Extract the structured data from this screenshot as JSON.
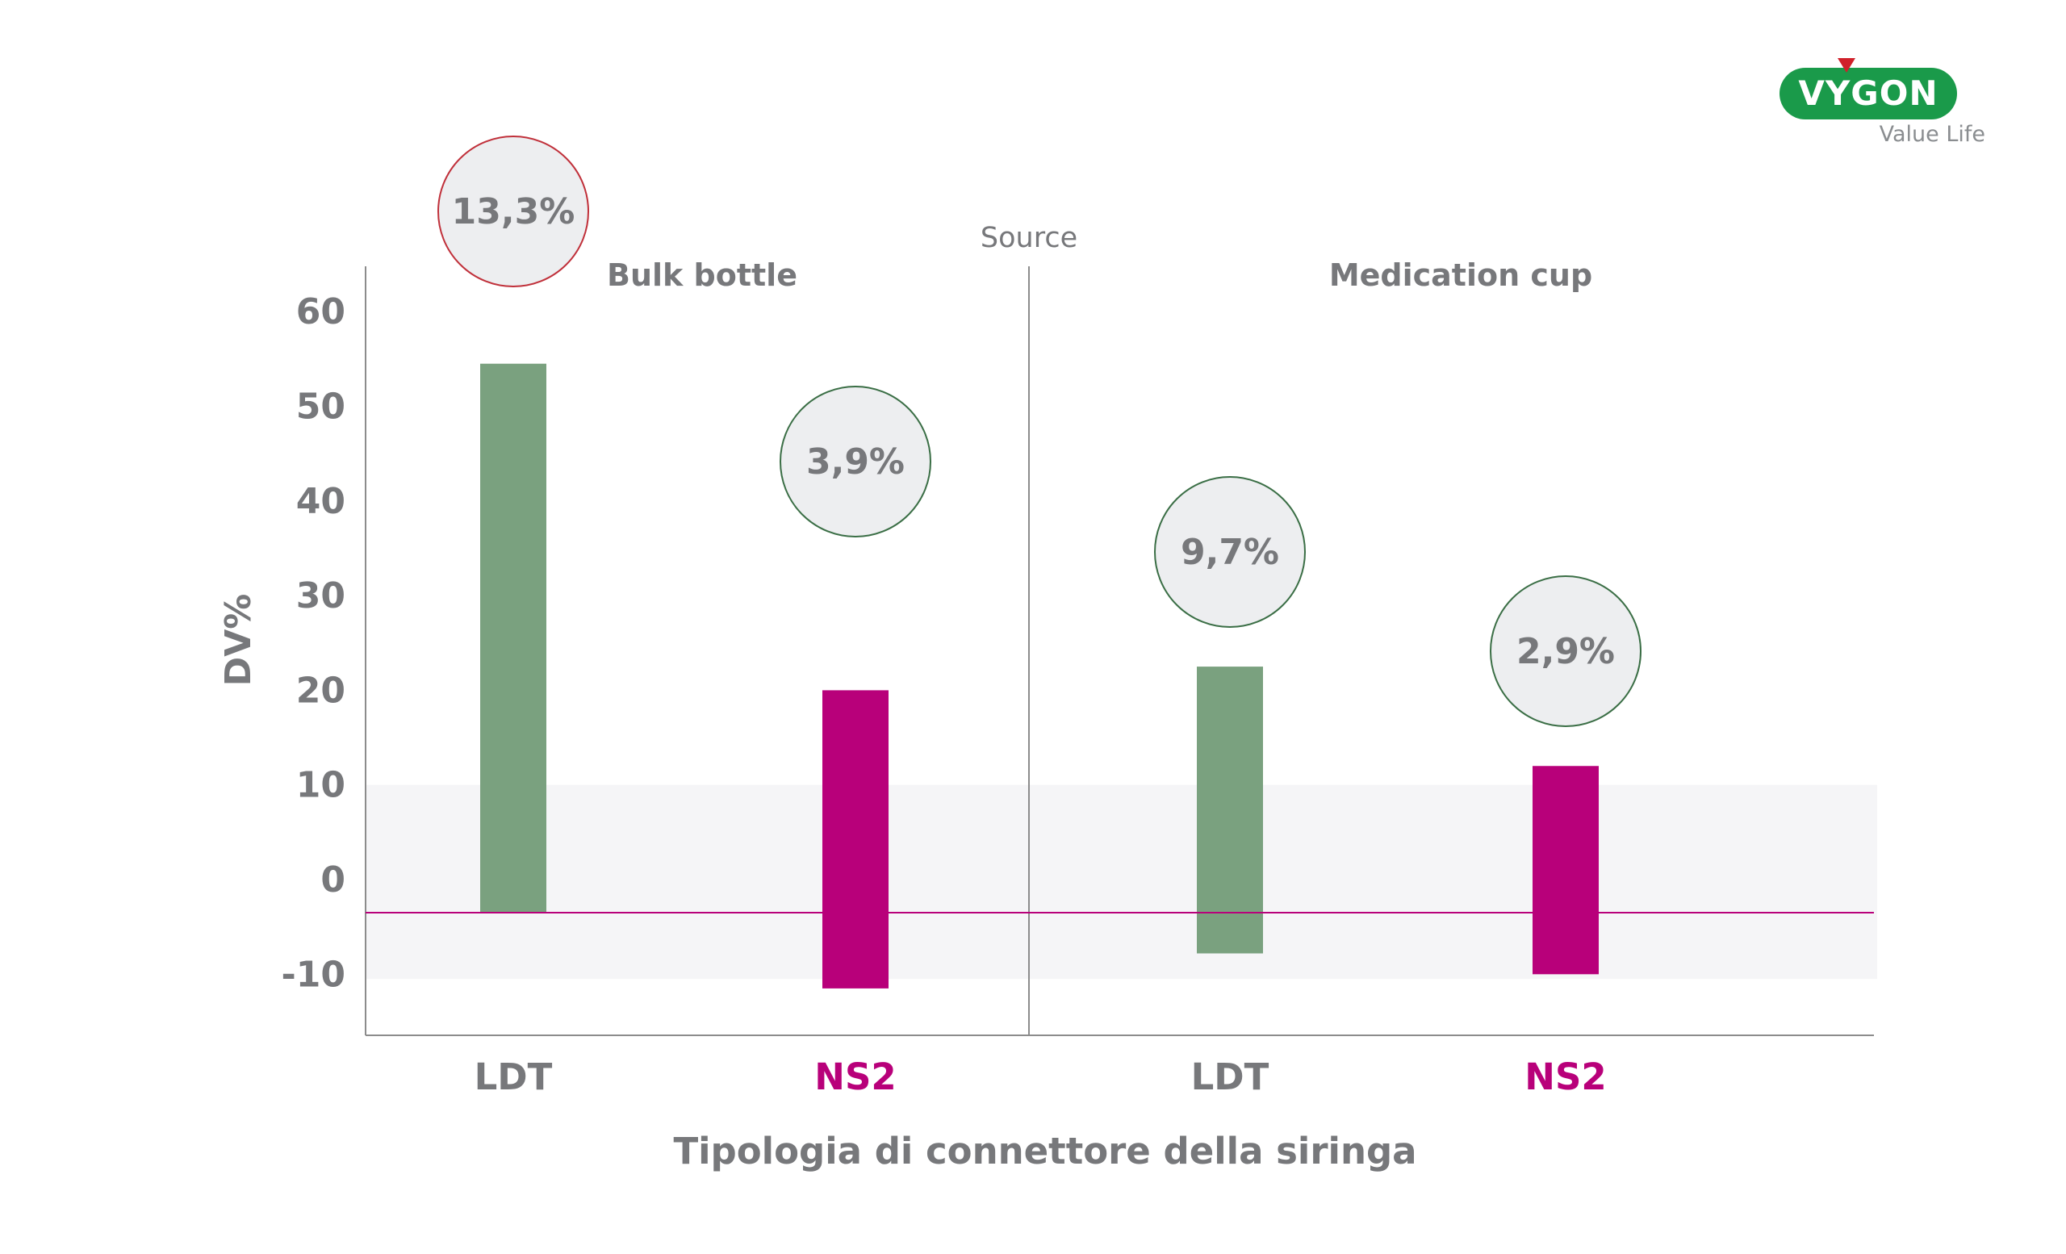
{
  "brand": {
    "name": "VYGON",
    "tagline": "Value Life",
    "colors": {
      "green": "#1a9a4a",
      "red": "#d0202a"
    }
  },
  "colors": {
    "ldt": "#7aa17f",
    "ns2": "#b8007a",
    "text": "#77787b",
    "band": "#f5f5f7",
    "circle_fill": "#edeef0"
  },
  "chart_data": {
    "type": "bar",
    "xlabel": "Tipologia di connettore della siringa",
    "ylabel": "DV%",
    "facet_title": "Source",
    "ylim": [
      -16,
      65
    ],
    "yticks": [
      -10,
      0,
      10,
      20,
      30,
      40,
      50,
      60
    ],
    "reference_line": -3.5,
    "shaded_band": [
      -10.5,
      10
    ],
    "panels": [
      {
        "title": "Bulk bottle",
        "bars": [
          {
            "category": "LDT",
            "low": -3.5,
            "high": 54.5,
            "badge": "13,3%"
          },
          {
            "category": "NS2",
            "low": -11.5,
            "high": 20,
            "badge": "3,9%"
          }
        ]
      },
      {
        "title": "Medication cup",
        "bars": [
          {
            "category": "LDT",
            "low": -7.8,
            "high": 22.5,
            "badge": "9,7%"
          },
          {
            "category": "NS2",
            "low": -10,
            "high": 12,
            "badge": "2,9%"
          }
        ]
      }
    ]
  }
}
